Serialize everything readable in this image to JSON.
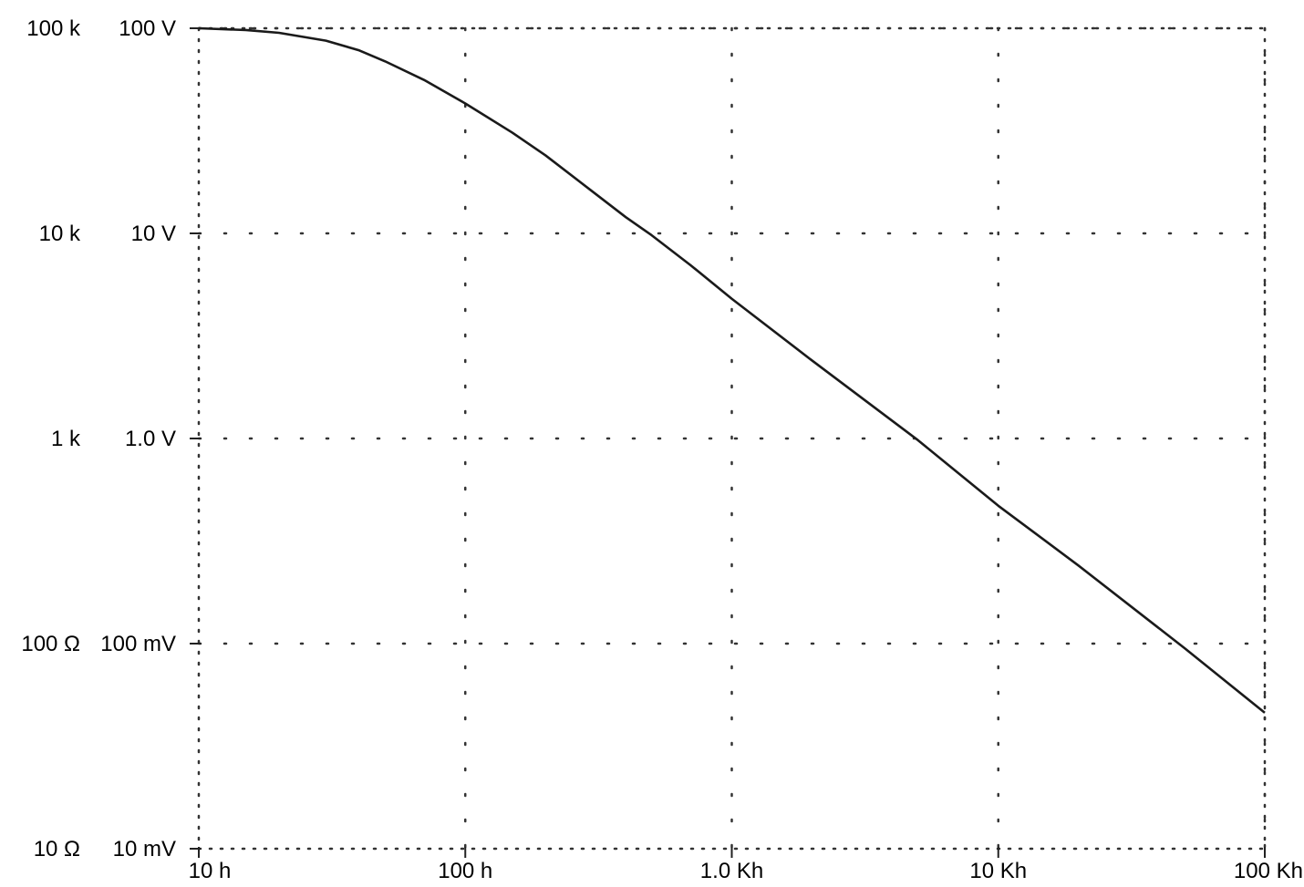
{
  "chart_data": {
    "type": "line",
    "x_scale": "log",
    "y_scale": "log",
    "xlim": [
      10,
      100000
    ],
    "ylim_left_outer": [
      10,
      100000
    ],
    "ylim_left_inner": [
      0.01,
      100
    ],
    "grid": true,
    "grid_style": "dotted",
    "x_ticks": [
      {
        "value": 10,
        "label": "10 h"
      },
      {
        "value": 100,
        "label": "100 h"
      },
      {
        "value": 1000,
        "label": "1.0 Kh"
      },
      {
        "value": 10000,
        "label": "10 Kh"
      },
      {
        "value": 100000,
        "label": "100 Kh"
      }
    ],
    "y_ticks_outer": [
      {
        "value": 100000,
        "label": "100 k"
      },
      {
        "value": 10000,
        "label": "10 k"
      },
      {
        "value": 1000,
        "label": "1 k"
      },
      {
        "value": 100,
        "label": "100 Ω"
      },
      {
        "value": 10,
        "label": "10 Ω"
      }
    ],
    "y_ticks_inner": [
      {
        "value": 100,
        "label": "100 V"
      },
      {
        "value": 10,
        "label": "10 V"
      },
      {
        "value": 1,
        "label": "1.0 V"
      },
      {
        "value": 0.1,
        "label": "100 mV"
      },
      {
        "value": 0.01,
        "label": "10 mV"
      }
    ],
    "series": [
      {
        "color": "#1a1a1a",
        "x": [
          10,
          15,
          20,
          30,
          40,
          50,
          70,
          100,
          150,
          200,
          300,
          400,
          500,
          700,
          1000,
          2000,
          5000,
          10000,
          20000,
          50000,
          100000
        ],
        "y": [
          100000,
          98000,
          95000,
          87000,
          78000,
          69000,
          56000,
          43000,
          31000,
          24000,
          16000,
          12000,
          9800,
          7000,
          4800,
          2400,
          980,
          470,
          240,
          95,
          46
        ]
      }
    ]
  }
}
